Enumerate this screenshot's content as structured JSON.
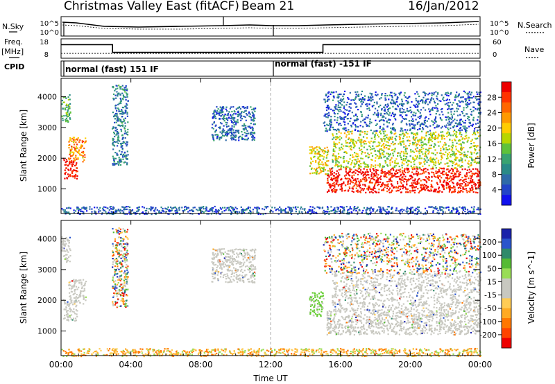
{
  "header": {
    "title": "Christmas Valley East (fitACF)",
    "beam": "Beam 21",
    "date": "16/Jan/2012"
  },
  "summary": {
    "nsky_label": "N.Sky",
    "nsky_ticks": [
      "10^5",
      "10^0"
    ],
    "nsearch_label": "N.Search",
    "nsearch_ticks": [
      "10^5",
      "10^0"
    ],
    "freq_label": "Freq.",
    "freq_unit": "[MHz]",
    "freq_ticks": [
      "18",
      "8"
    ],
    "nave_label": "Nave",
    "nave_ticks": [
      "60",
      "0"
    ],
    "cpid_label": "CPID",
    "cpid_modes": [
      {
        "text": "normal (fast) 151 IF",
        "start_h": 0,
        "end_h": 12
      },
      {
        "text": "normal (fast) -151 IF",
        "start_h": 12,
        "end_h": 24
      }
    ],
    "freq_series": {
      "x": [
        0,
        2.95,
        2.95,
        15,
        15,
        24
      ],
      "y": [
        15,
        15,
        11,
        11,
        15,
        15
      ]
    },
    "nave_series": {
      "x": [
        0,
        24
      ],
      "y": [
        15,
        15
      ]
    }
  },
  "axes": {
    "xlabel": "Time UT",
    "x_ticks": [
      "00:00",
      "04:00",
      "08:00",
      "12:00",
      "16:00",
      "20:00",
      "00:00"
    ],
    "ylabel": "Slant Range [km]",
    "y_ticks": [
      "1000",
      "2000",
      "3000",
      "4000"
    ]
  },
  "chart_data": [
    {
      "type": "heatmap",
      "name": "power",
      "xlabel": "Time UT",
      "ylabel": "Slant Range [km]",
      "xlim": [
        0,
        24
      ],
      "ylim": [
        200,
        4600
      ],
      "colorbar": {
        "label": "Power [dB]",
        "ticks": [
          "28",
          "24",
          "20",
          "16",
          "12",
          "8",
          "4"
        ],
        "colors": [
          "#ee0000",
          "#ff3300",
          "#ff6600",
          "#ff9900",
          "#ffcc00",
          "#b8d600",
          "#5fc23a",
          "#3aa371",
          "#2a8a87",
          "#2e6aa8",
          "#2244c8",
          "#1111ee"
        ]
      },
      "regions": [
        {
          "t0": 0.1,
          "t1": 0.9,
          "r0": 1350,
          "r1": 2050,
          "level": 0.95
        },
        {
          "t0": 0.4,
          "t1": 1.4,
          "r0": 1900,
          "r1": 2700,
          "level": 0.7
        },
        {
          "t0": 0.0,
          "t1": 0.5,
          "r0": 3200,
          "r1": 4100,
          "level": 0.35
        },
        {
          "t0": 2.9,
          "t1": 3.8,
          "r0": 1800,
          "r1": 4400,
          "level": 0.2
        },
        {
          "t0": 8.6,
          "t1": 11.1,
          "r0": 2600,
          "r1": 3700,
          "level": 0.15
        },
        {
          "t0": 14.2,
          "t1": 15.3,
          "r0": 1500,
          "r1": 2400,
          "level": 0.55
        },
        {
          "t0": 15.2,
          "t1": 24.0,
          "r0": 900,
          "r1": 1700,
          "level": 0.95
        },
        {
          "t0": 15.5,
          "t1": 24.0,
          "r0": 1700,
          "r1": 2900,
          "level": 0.5
        },
        {
          "t0": 15.0,
          "t1": 24.0,
          "r0": 2900,
          "r1": 4200,
          "level": 0.12
        },
        {
          "t0": 0.0,
          "t1": 24.0,
          "r0": 200,
          "r1": 450,
          "level": 0.1
        }
      ]
    },
    {
      "type": "heatmap",
      "name": "velocity",
      "xlabel": "Time UT",
      "ylabel": "Slant Range [km]",
      "xlim": [
        0,
        24
      ],
      "ylim": [
        200,
        4600
      ],
      "colorbar": {
        "label": "Velocity [m s^-1]",
        "ticks": [
          "200",
          "100",
          "50",
          "15",
          "-15",
          "-50",
          "-100",
          "-200"
        ],
        "colors": [
          "#1a22aa",
          "#2a55cc",
          "#2f8a6a",
          "#55bb33",
          "#99dd55",
          "#c8c8c0",
          "#c8c8c0",
          "#ffcc55",
          "#ffaa22",
          "#ff7700",
          "#ff4400",
          "#ee0000"
        ]
      },
      "regions": [
        {
          "t0": 0.1,
          "t1": 0.9,
          "r0": 1350,
          "r1": 2050,
          "kind": "ground"
        },
        {
          "t0": 0.4,
          "t1": 1.4,
          "r0": 1900,
          "r1": 2700,
          "kind": "ground"
        },
        {
          "t0": 0.0,
          "t1": 0.5,
          "r0": 3200,
          "r1": 4100,
          "kind": "ground"
        },
        {
          "t0": 2.9,
          "t1": 3.8,
          "r0": 1800,
          "r1": 4400,
          "kind": "mixed"
        },
        {
          "t0": 8.6,
          "t1": 11.1,
          "r0": 2600,
          "r1": 3700,
          "kind": "ground"
        },
        {
          "t0": 14.2,
          "t1": 15.0,
          "r0": 1500,
          "r1": 2300,
          "kind": "positive"
        },
        {
          "t0": 15.2,
          "t1": 24.0,
          "r0": 900,
          "r1": 1700,
          "kind": "ground"
        },
        {
          "t0": 15.5,
          "t1": 24.0,
          "r0": 1700,
          "r1": 2900,
          "kind": "ground"
        },
        {
          "t0": 15.0,
          "t1": 24.0,
          "r0": 2900,
          "r1": 4200,
          "kind": "mixed"
        },
        {
          "t0": 0.0,
          "t1": 24.0,
          "r0": 200,
          "r1": 450,
          "kind": "negative"
        }
      ]
    }
  ]
}
